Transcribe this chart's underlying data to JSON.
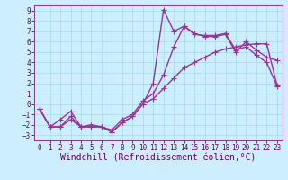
{
  "xlabel": "Windchill (Refroidissement éolien,°C)",
  "bg_color": "#cceeff",
  "grid_color": "#aaddee",
  "line_color": "#993399",
  "xlim": [
    -0.5,
    23.5
  ],
  "ylim": [
    -3.5,
    9.5
  ],
  "xticks": [
    0,
    1,
    2,
    3,
    4,
    5,
    6,
    7,
    8,
    9,
    10,
    11,
    12,
    13,
    14,
    15,
    16,
    17,
    18,
    19,
    20,
    21,
    22,
    23
  ],
  "yticks": [
    -3,
    -2,
    -1,
    0,
    1,
    2,
    3,
    4,
    5,
    6,
    7,
    8,
    9
  ],
  "curve1_x": [
    0,
    1,
    2,
    3,
    4,
    5,
    6,
    7,
    8,
    9,
    10,
    11,
    12,
    13,
    14,
    15,
    16,
    17,
    18,
    19,
    20,
    21,
    22,
    23
  ],
  "curve1_y": [
    -0.5,
    -2.2,
    -1.5,
    -0.7,
    -2.2,
    -2.0,
    -2.2,
    -2.5,
    -1.5,
    -1.0,
    0.3,
    1.0,
    2.8,
    5.5,
    7.5,
    6.8,
    6.5,
    6.5,
    6.7,
    5.0,
    6.0,
    5.2,
    4.5,
    4.2
  ],
  "curve2_x": [
    0,
    1,
    2,
    3,
    4,
    5,
    6,
    7,
    8,
    9,
    10,
    11,
    12,
    13,
    14,
    15,
    16,
    17,
    18,
    19,
    20,
    21,
    22,
    23
  ],
  "curve2_y": [
    -0.5,
    -2.2,
    -2.2,
    -1.2,
    -2.2,
    -2.2,
    -2.2,
    -2.7,
    -1.8,
    -1.2,
    0.0,
    2.0,
    9.1,
    7.0,
    7.5,
    6.7,
    6.6,
    6.6,
    6.8,
    5.2,
    5.5,
    4.7,
    4.0,
    1.7
  ],
  "curve3_x": [
    0,
    1,
    2,
    3,
    4,
    5,
    6,
    7,
    8,
    9,
    10,
    11,
    12,
    13,
    14,
    15,
    16,
    17,
    18,
    19,
    20,
    21,
    22,
    23
  ],
  "curve3_y": [
    -0.5,
    -2.2,
    -2.2,
    -1.5,
    -2.2,
    -2.2,
    -2.2,
    -2.7,
    -1.8,
    -1.2,
    0.0,
    0.5,
    1.5,
    2.5,
    3.5,
    4.0,
    4.5,
    5.0,
    5.3,
    5.5,
    5.7,
    5.8,
    5.8,
    1.8
  ],
  "marker": "+",
  "markersize": 4,
  "linewidth": 1.0,
  "tick_fontsize": 5.5,
  "label_fontsize": 7.0
}
